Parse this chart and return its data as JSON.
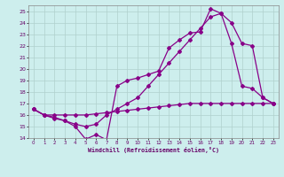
{
  "bg_color": "#cdeeed",
  "grid_color": "#b0d0cc",
  "line_color": "#880088",
  "xlabel": "Windchill (Refroidissement éolien,°C)",
  "ylim": [
    14,
    25.5
  ],
  "xlim": [
    -0.5,
    23.5
  ],
  "yticks": [
    14,
    15,
    16,
    17,
    18,
    19,
    20,
    21,
    22,
    23,
    24,
    25
  ],
  "xticks": [
    0,
    1,
    2,
    3,
    4,
    5,
    6,
    7,
    8,
    9,
    10,
    11,
    12,
    13,
    14,
    15,
    16,
    17,
    18,
    19,
    20,
    21,
    22,
    23
  ],
  "line1_x": [
    0,
    1,
    2,
    3,
    4,
    5,
    6,
    7,
    8,
    9,
    10,
    11,
    12,
    13,
    14,
    15,
    16,
    17,
    18,
    19,
    20,
    21,
    22,
    23
  ],
  "line1_y": [
    16.5,
    16.0,
    15.7,
    15.5,
    15.0,
    13.9,
    14.3,
    13.85,
    18.5,
    19.0,
    19.2,
    19.5,
    19.8,
    21.8,
    22.5,
    23.1,
    23.2,
    25.2,
    24.8,
    22.2,
    18.5,
    18.3,
    17.5,
    17.0
  ],
  "line2_x": [
    0,
    1,
    2,
    3,
    4,
    5,
    6,
    7,
    8,
    9,
    10,
    11,
    12,
    13,
    14,
    15,
    16,
    17,
    18,
    19,
    20,
    21,
    22,
    23
  ],
  "line2_y": [
    16.5,
    16.0,
    15.8,
    15.5,
    15.2,
    15.0,
    15.2,
    16.0,
    16.5,
    17.0,
    17.5,
    18.5,
    19.5,
    20.5,
    21.5,
    22.5,
    23.5,
    24.5,
    24.8,
    24.0,
    22.2,
    22.0,
    17.5,
    17.0
  ],
  "line3_x": [
    0,
    1,
    2,
    3,
    4,
    5,
    6,
    7,
    8,
    9,
    10,
    11,
    12,
    13,
    14,
    15,
    16,
    17,
    18,
    19,
    20,
    21,
    22,
    23
  ],
  "line3_y": [
    16.5,
    16.0,
    16.0,
    16.0,
    16.0,
    16.0,
    16.1,
    16.2,
    16.3,
    16.4,
    16.5,
    16.6,
    16.7,
    16.8,
    16.9,
    17.0,
    17.0,
    17.0,
    17.0,
    17.0,
    17.0,
    17.0,
    17.0,
    17.0
  ]
}
